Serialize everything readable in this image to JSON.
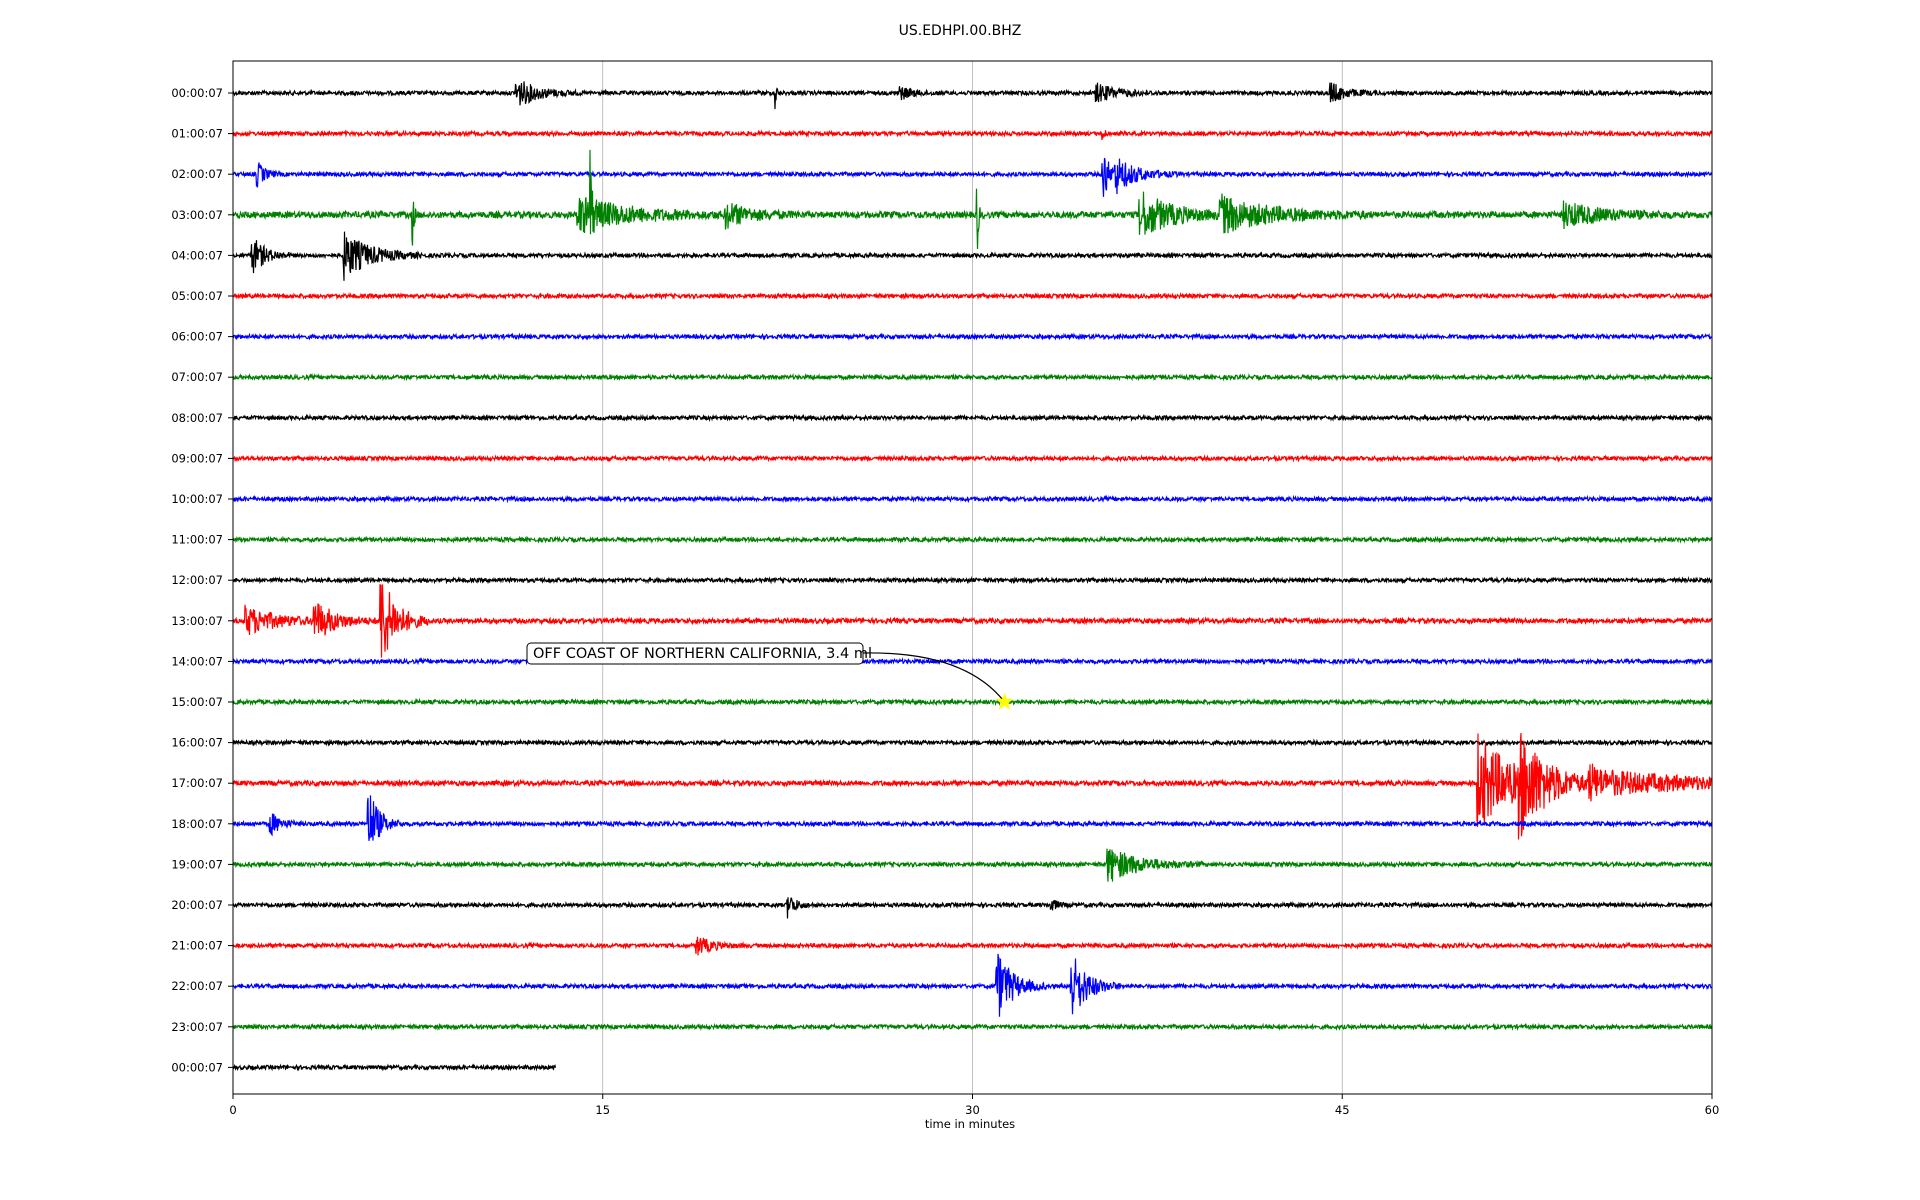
{
  "chart_data": {
    "type": "line",
    "title": "US.EDHPI.00.BHZ",
    "xlabel": "time in minutes",
    "ylabel": "",
    "xlim": [
      0,
      60
    ],
    "xticks": [
      "0",
      "15",
      "30",
      "45",
      "60"
    ],
    "grid": "vertical lines at x ticks",
    "row_labels": [
      "00:00:07",
      "01:00:07",
      "02:00:07",
      "03:00:07",
      "04:00:07",
      "05:00:07",
      "06:00:07",
      "07:00:07",
      "08:00:07",
      "09:00:07",
      "10:00:07",
      "11:00:07",
      "12:00:07",
      "13:00:07",
      "14:00:07",
      "15:00:07",
      "16:00:07",
      "17:00:07",
      "18:00:07",
      "19:00:07",
      "20:00:07",
      "21:00:07",
      "22:00:07",
      "23:00:07",
      "00:00:07"
    ],
    "colors": [
      "#000000",
      "#ff0000",
      "#0000ff",
      "#008000"
    ],
    "rows": [
      {
        "end": 60,
        "noise": 0.5,
        "events": [
          [
            11.5,
            1.2,
            0.8
          ],
          [
            22,
            1.6,
            0.05
          ],
          [
            27,
            0.6,
            0.5
          ],
          [
            35,
            0.8,
            0.8
          ],
          [
            44.5,
            0.9,
            0.6
          ]
        ]
      },
      {
        "end": 60,
        "noise": 0.5,
        "events": [
          [
            35.3,
            1.0,
            0.05
          ]
        ]
      },
      {
        "end": 60,
        "noise": 0.5,
        "events": [
          [
            1.0,
            1.0,
            0.3
          ],
          [
            35.3,
            2.8,
            0.2
          ],
          [
            35.8,
            1.5,
            0.8
          ]
        ]
      },
      {
        "end": 60,
        "noise": 0.8,
        "events": [
          [
            7.3,
            2.5,
            0.05
          ],
          [
            14.5,
            5.0,
            0.05
          ],
          [
            14.0,
            1.5,
            2.0
          ],
          [
            20,
            1.0,
            1.0
          ],
          [
            30.2,
            3.0,
            0.05
          ],
          [
            36.8,
            2.0,
            1.2
          ],
          [
            40,
            1.5,
            2.0
          ],
          [
            54,
            1.0,
            1.5
          ]
        ]
      },
      {
        "end": 60,
        "noise": 0.5,
        "events": [
          [
            0.8,
            1.5,
            0.5
          ],
          [
            4.5,
            2.0,
            1.0
          ]
        ]
      },
      {
        "end": 60,
        "noise": 0.5,
        "events": []
      },
      {
        "end": 60,
        "noise": 0.5,
        "events": []
      },
      {
        "end": 60,
        "noise": 0.5,
        "events": []
      },
      {
        "end": 60,
        "noise": 0.5,
        "events": []
      },
      {
        "end": 60,
        "noise": 0.5,
        "events": []
      },
      {
        "end": 60,
        "noise": 0.5,
        "events": []
      },
      {
        "end": 60,
        "noise": 0.5,
        "events": []
      },
      {
        "end": 60,
        "noise": 0.5,
        "events": []
      },
      {
        "end": 60,
        "noise": 0.6,
        "events": [
          [
            0.5,
            1.2,
            1.2
          ],
          [
            3.3,
            1.6,
            0.8
          ],
          [
            6.0,
            4.0,
            0.6
          ]
        ]
      },
      {
        "end": 60,
        "noise": 0.5,
        "events": []
      },
      {
        "end": 60,
        "noise": 0.5,
        "events": []
      },
      {
        "end": 60,
        "noise": 0.5,
        "events": []
      },
      {
        "end": 60,
        "noise": 0.6,
        "events": [
          [
            50.5,
            4.0,
            1.5
          ],
          [
            52.2,
            3.5,
            1.0
          ],
          [
            55.0,
            1.2,
            4.0
          ]
        ]
      },
      {
        "end": 60,
        "noise": 0.5,
        "events": [
          [
            1.5,
            1.0,
            0.4
          ],
          [
            5.5,
            3.0,
            0.4
          ]
        ]
      },
      {
        "end": 60,
        "noise": 0.5,
        "events": [
          [
            35.5,
            1.5,
            1.2
          ]
        ]
      },
      {
        "end": 60,
        "noise": 0.5,
        "events": [
          [
            22.5,
            1.0,
            0.3
          ],
          [
            33.2,
            0.6,
            0.2
          ]
        ]
      },
      {
        "end": 60,
        "noise": 0.5,
        "events": [
          [
            18.8,
            0.8,
            0.6
          ]
        ]
      },
      {
        "end": 60,
        "noise": 0.5,
        "events": [
          [
            31.0,
            3.0,
            0.6
          ],
          [
            34.0,
            3.0,
            0.6
          ]
        ]
      },
      {
        "end": 60,
        "noise": 0.5,
        "events": []
      },
      {
        "end": 13.1,
        "noise": 0.5,
        "events": []
      }
    ],
    "annotation": {
      "text": "OFF COAST OF NORTHERN CALIFORNIA, 3.4 ml",
      "row": 15,
      "x": 31.3,
      "marker": "star",
      "marker_color": "#ffff00"
    }
  }
}
